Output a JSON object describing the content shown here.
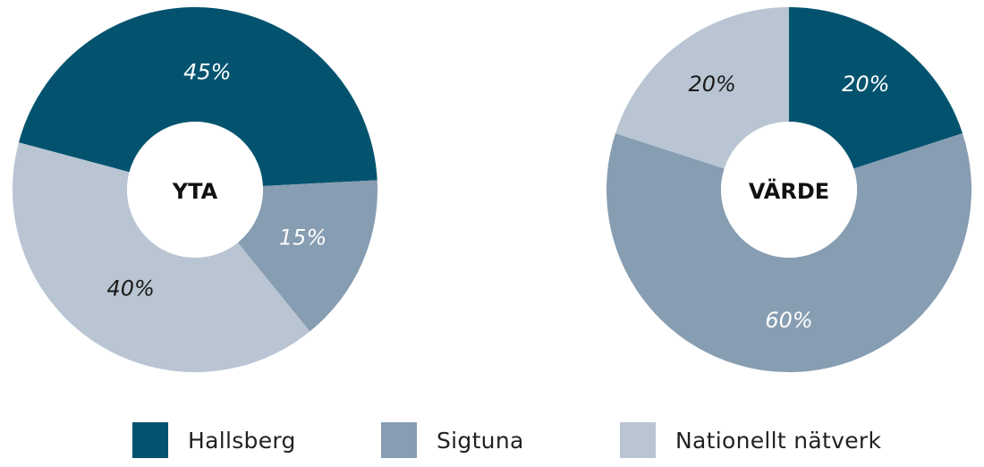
{
  "colors": {
    "hallsberg": "#03536F",
    "sigtuna": "#879DB2",
    "nationellt": "#B9C5D3"
  },
  "chart_data": [
    {
      "type": "pie",
      "variant": "donut",
      "title": "YTA",
      "slices": [
        {
          "name": "Hallsberg",
          "value": 45,
          "label": "45%"
        },
        {
          "name": "Sigtuna",
          "value": 15,
          "label": "15%"
        },
        {
          "name": "Nationellt nätverk",
          "value": 40,
          "label": "40%"
        }
      ]
    },
    {
      "type": "pie",
      "variant": "donut",
      "title": "VÄRDE",
      "slices": [
        {
          "name": "Hallsberg",
          "value": 20,
          "label": "20%"
        },
        {
          "name": "Sigtuna",
          "value": 60,
          "label": "60%"
        },
        {
          "name": "Nationellt nätverk",
          "value": 20,
          "label": "20%"
        }
      ]
    }
  ],
  "legend": {
    "items": [
      {
        "label": "Hallsberg",
        "color_key": "hallsberg"
      },
      {
        "label": "Sigtuna",
        "color_key": "sigtuna"
      },
      {
        "label": "Nationellt nätverk",
        "color_key": "nationellt"
      }
    ]
  }
}
